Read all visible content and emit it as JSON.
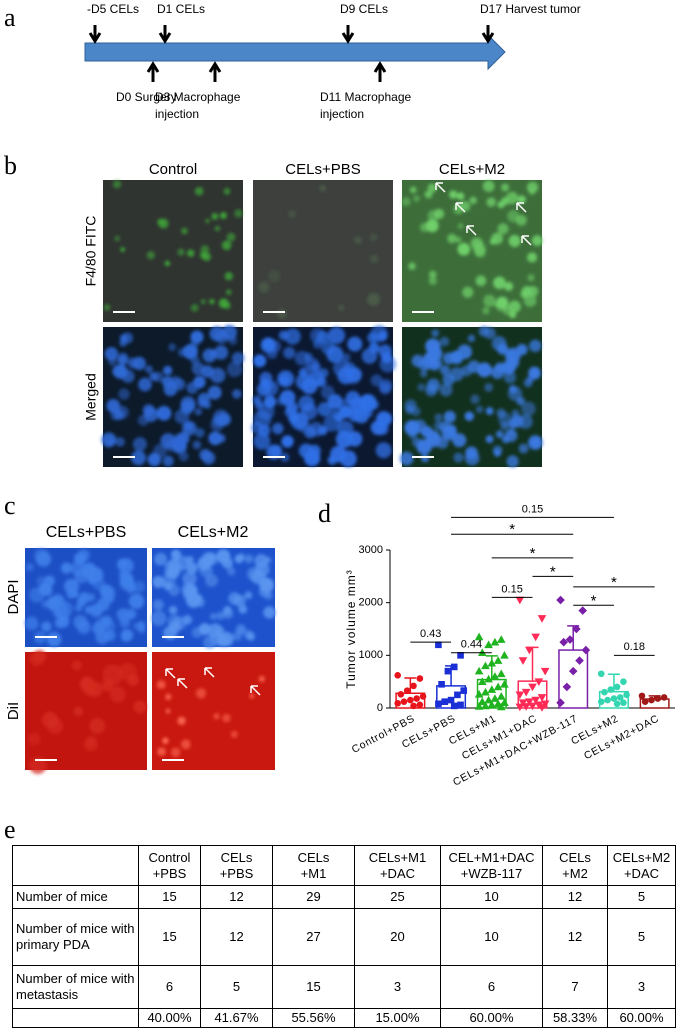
{
  "timeline": {
    "panel": "a",
    "above": [
      "-D5 CELs",
      "D1 CELs",
      "D9 CELs",
      "D17 Harvest tumor"
    ],
    "below": [
      "D0 Surgery",
      "D3 Macrophage injection",
      "D11 Macrophage injection"
    ]
  },
  "panel_b": {
    "panel": "b",
    "columns": [
      "Control",
      "CELs+PBS",
      "CELs+M2"
    ],
    "rows": [
      "F4/80 FITC",
      "Merged"
    ]
  },
  "panel_c": {
    "panel": "c",
    "columns": [
      "CELs+PBS",
      "CELs+M2"
    ],
    "rows": [
      "DAPI",
      "DiI"
    ]
  },
  "chart_data": {
    "type": "bar",
    "panel": "d",
    "y_label": "Tumor volume mm³",
    "categories": [
      "Control+PBS",
      "CELs+PBS",
      "CELs+M1",
      "CELs+M1+DAC",
      "CELs+M1+DAC+WZB-117",
      "CELs+M2",
      "CELs+M2+DAC"
    ],
    "values": [
      280,
      420,
      540,
      510,
      1100,
      310,
      170
    ],
    "errors": [
      290,
      380,
      450,
      640,
      460,
      330,
      60
    ],
    "colors": [
      "#e8141c",
      "#1a2fd6",
      "#1fb31f",
      "#ff2a55",
      "#7a1fa8",
      "#33d6b0",
      "#a01818"
    ],
    "markers": [
      "circle",
      "square",
      "triangle",
      "triangle-down",
      "diamond",
      "circle",
      "circle"
    ],
    "points": [
      [
        620,
        560,
        420,
        330,
        260,
        220,
        180,
        150,
        120,
        90,
        60,
        40
      ],
      [
        1200,
        1000,
        780,
        700,
        450,
        330,
        250,
        150,
        120,
        80,
        60,
        40
      ],
      [
        1350,
        1300,
        1250,
        1200,
        1050,
        1000,
        900,
        850,
        800,
        700,
        650,
        600,
        550,
        500,
        450,
        400,
        350,
        300,
        260,
        220,
        180,
        150,
        120,
        100,
        80,
        60,
        40,
        30,
        20
      ],
      [
        2050,
        1700,
        1350,
        1100,
        900,
        700,
        500,
        400,
        300,
        250,
        200,
        150,
        120,
        100,
        80,
        60,
        40,
        30,
        20,
        10
      ],
      [
        2050,
        1850,
        1500,
        1300,
        1250,
        1100,
        900,
        700,
        400,
        100
      ],
      [
        650,
        500,
        400,
        350,
        300,
        250,
        200,
        180,
        150,
        120,
        100,
        80
      ],
      [
        230,
        200,
        180,
        150,
        120
      ]
    ],
    "ylim": [
      0,
      3000
    ],
    "yticks": [
      0,
      1000,
      2000,
      3000
    ],
    "brackets": [
      {
        "label": "0.43",
        "between": [
          "Control+PBS",
          "CELs+PBS"
        ]
      },
      {
        "label": "0.44",
        "between": [
          "CELs+PBS",
          "CELs+M1"
        ]
      },
      {
        "label": "0.15",
        "between": [
          "CELs+M1",
          "CELs+M1+DAC"
        ]
      },
      {
        "label": "*",
        "between": [
          "CELs+M1+DAC",
          "CELs+M1+DAC+WZB-117"
        ]
      },
      {
        "label": "*",
        "between": [
          "CELs+M1",
          "CELs+M1+DAC+WZB-117"
        ]
      },
      {
        "label": "*",
        "between": [
          "CELs+PBS",
          "CELs+M1+DAC+WZB-117"
        ]
      },
      {
        "label": "0.15",
        "between": [
          "CELs+PBS",
          "CELs+M2"
        ]
      },
      {
        "label": "*",
        "between": [
          "CELs+M1+DAC+WZB-117",
          "CELs+M2"
        ]
      },
      {
        "label": "*",
        "between": [
          "CELs+M1+DAC+WZB-117",
          "CELs+M2+DAC"
        ]
      },
      {
        "label": "0.18",
        "between": [
          "CELs+M2",
          "CELs+M2+DAC"
        ]
      }
    ]
  },
  "table": {
    "panel": "e",
    "header": [
      [
        "Control",
        "+PBS"
      ],
      [
        "CELs",
        "+PBS"
      ],
      [
        "CELs",
        "+M1"
      ],
      [
        "CELs+M1",
        "+DAC"
      ],
      [
        "CEL+M1+DAC",
        "+WZB-117"
      ],
      [
        "CELs",
        "+M2"
      ],
      [
        "CELs+M2",
        "+DAC"
      ]
    ],
    "rows": [
      {
        "label": "Number of mice",
        "cells": [
          "15",
          "12",
          "29",
          "25",
          "10",
          "12",
          "5"
        ]
      },
      {
        "label": "Number of mice with primary PDA",
        "cells": [
          "15",
          "12",
          "27",
          "20",
          "10",
          "12",
          "5"
        ]
      },
      {
        "label": "Number of mice with metastasis",
        "cells": [
          "6",
          "5",
          "15",
          "3",
          "6",
          "7",
          "3"
        ]
      },
      {
        "cells": [
          "40.00%",
          "41.67%",
          "55.56%",
          "15.00%",
          "60.00%",
          "58.33%",
          "60.00%"
        ]
      }
    ]
  }
}
